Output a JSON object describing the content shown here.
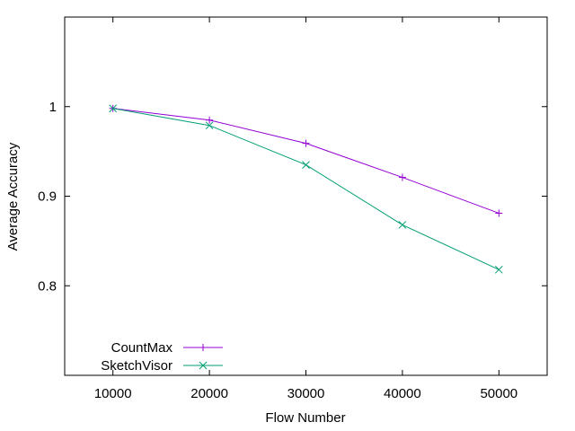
{
  "chart_data": {
    "type": "line",
    "title": "",
    "xlabel": "Flow Number",
    "ylabel": "Average Accuracy",
    "x": [
      10000,
      20000,
      30000,
      40000,
      50000
    ],
    "x_ticks": [
      "10000",
      "20000",
      "30000",
      "40000",
      "50000"
    ],
    "y_ticks": [
      "0.8",
      "0.9",
      "1"
    ],
    "xlim": [
      5000,
      55000
    ],
    "ylim": [
      0.7,
      1.1
    ],
    "grid": false,
    "legend_position": "bottom-left",
    "series": [
      {
        "name": "CountMax",
        "color": "#9400D3",
        "marker": "plus",
        "values": [
          0.998,
          0.985,
          0.959,
          0.921,
          0.881
        ]
      },
      {
        "name": "SketchVisor",
        "color": "#009E73",
        "marker": "cross",
        "values": [
          0.998,
          0.979,
          0.935,
          0.868,
          0.818
        ]
      }
    ]
  }
}
